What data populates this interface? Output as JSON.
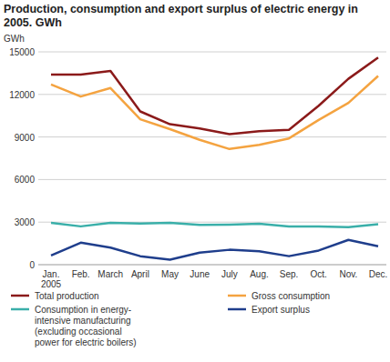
{
  "chart_data": {
    "type": "line",
    "title": "Production, consumption and export surplus of electric energy in\n2005. GWh",
    "y_label": "GWh",
    "categories": [
      "Jan.\n2005",
      "Feb.",
      "March",
      "April",
      "May",
      "June",
      "July",
      "Aug.",
      "Sep.",
      "Oct.",
      "Nov.",
      "Dec."
    ],
    "series": [
      {
        "name": "Total production",
        "color": "#8b1a1a",
        "values": [
          13400,
          13400,
          13650,
          10800,
          9900,
          9600,
          9200,
          9400,
          9500,
          11200,
          13100,
          14600
        ]
      },
      {
        "name": "Consumption in energy-\nintensive manufacturing\n(excluding occasional\npower for electric boilers)",
        "color": "#3aafa9",
        "values": [
          2950,
          2700,
          2950,
          2900,
          2950,
          2800,
          2820,
          2880,
          2700,
          2700,
          2650,
          2850
        ]
      },
      {
        "name": "Gross consumption",
        "color": "#f4a340",
        "values": [
          12700,
          11850,
          12450,
          10250,
          9550,
          8800,
          8150,
          8450,
          8900,
          10200,
          11400,
          13300
        ]
      },
      {
        "name": "Export surplus",
        "color": "#1f3e8c",
        "values": [
          650,
          1550,
          1200,
          600,
          350,
          850,
          1050,
          950,
          600,
          1000,
          1750,
          1300
        ]
      }
    ],
    "ylim": [
      0,
      15000
    ],
    "yticks": [
      0,
      3000,
      6000,
      9000,
      12000,
      15000
    ],
    "grid": true,
    "legend": "bottom"
  }
}
